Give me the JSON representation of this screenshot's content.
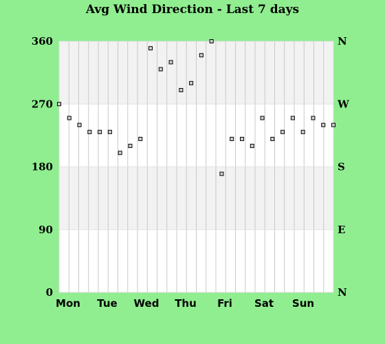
{
  "chart_data": {
    "type": "scatter",
    "title": "Avg Wind Direction - Last 7 days",
    "ylim": [
      0,
      360
    ],
    "y_ticks": [
      0,
      90,
      180,
      270,
      360
    ],
    "y_tick_labels": [
      "0",
      "90",
      "180",
      "270",
      "360"
    ],
    "right_ticks": [
      0,
      90,
      180,
      270,
      360
    ],
    "right_tick_labels": [
      "N",
      "E",
      "S",
      "W",
      "N"
    ],
    "x_ticks": [
      "Mon",
      "Tue",
      "Wed",
      "Thu",
      "Fri",
      "Sat",
      "Sun"
    ],
    "x_range": [
      0,
      7
    ],
    "grid": true,
    "band_colors": [
      "#ffffff",
      "#f2f2f2"
    ],
    "point_color": "#000000",
    "values": [
      270,
      250,
      240,
      230,
      230,
      230,
      200,
      210,
      220,
      350,
      320,
      330,
      290,
      300,
      340,
      360,
      170,
      220,
      220,
      210,
      250,
      220,
      230,
      250,
      230,
      250,
      240,
      240
    ]
  }
}
